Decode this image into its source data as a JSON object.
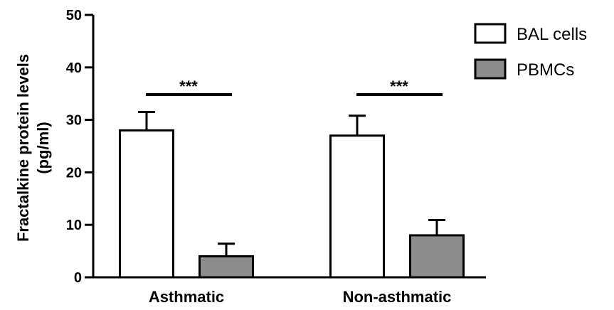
{
  "chart_data": {
    "type": "bar",
    "categories": [
      "Asthmatic",
      "Non-asthmatic"
    ],
    "series": [
      {
        "name": "BAL cells",
        "values": [
          28,
          27
        ],
        "errors": [
          3.5,
          3.8
        ],
        "color": "#ffffff"
      },
      {
        "name": "PBMCs",
        "values": [
          4,
          8
        ],
        "errors": [
          2.4,
          2.9
        ],
        "color": "#8c8c8c"
      }
    ],
    "ylabel_line1": "Fractalkine protein levels",
    "ylabel_line2": "(pg/ml)",
    "ylim": [
      0,
      50
    ],
    "yticks": [
      "0",
      "10",
      "20",
      "30",
      "40",
      "50"
    ],
    "significance": [
      {
        "category": "Asthmatic",
        "label": "***"
      },
      {
        "category": "Non-asthmatic",
        "label": "***"
      }
    ],
    "legend_position": "top-right",
    "grid": false
  }
}
